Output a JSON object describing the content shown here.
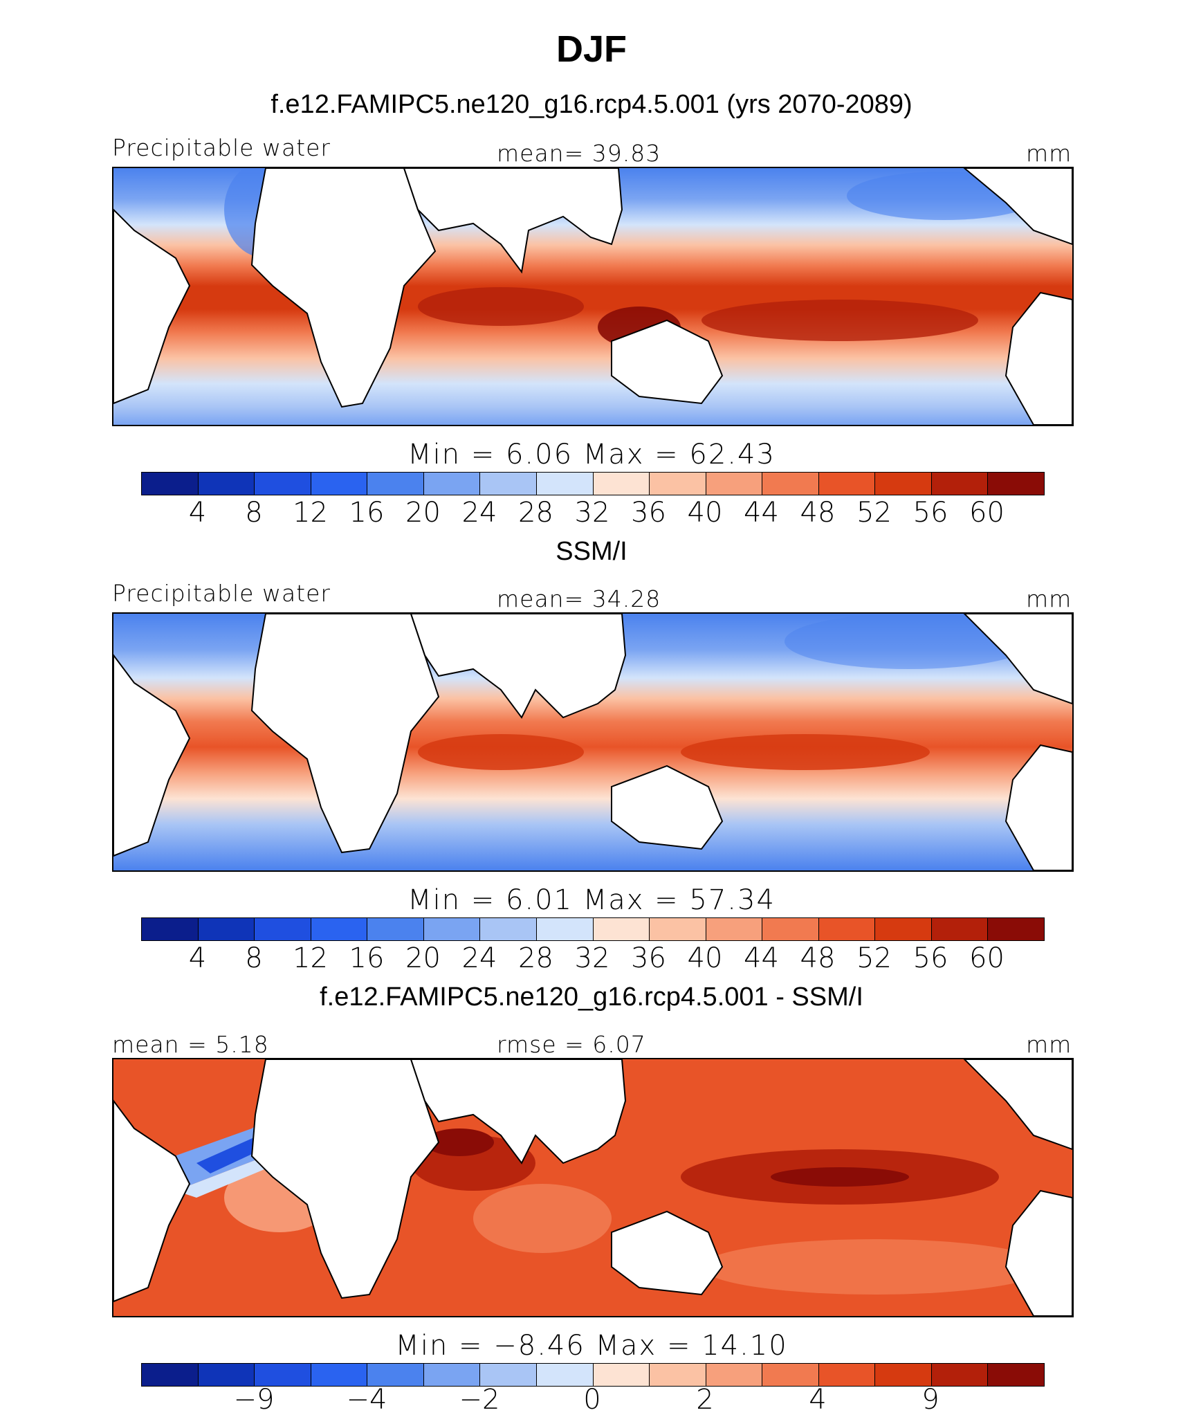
{
  "figure": {
    "title": "DJF",
    "colors": {
      "scale": [
        "#0b1e8c",
        "#0f34b8",
        "#1f4fe0",
        "#2a63f0",
        "#4b82ee",
        "#7aa4f2",
        "#a9c5f5",
        "#d3e4fb",
        "#fde3d3",
        "#fbc2a4",
        "#f7a07c",
        "#f17a50",
        "#e85428",
        "#d63a10",
        "#b3200a",
        "#8a0c06"
      ],
      "land": "#ffffff",
      "coast": "#000000"
    },
    "panels": [
      {
        "heading": "f.e12.FAMIPC5.ne120_g16.rcp4.5.001 (yrs 2070-2089)",
        "left_label": "Precipitable water",
        "center_label": "mean=  39.83",
        "right_label": "mm",
        "min_max": "Min =    6.06  Max =   62.43",
        "ticks": [
          "4",
          "8",
          "12",
          "16",
          "20",
          "24",
          "28",
          "32",
          "36",
          "40",
          "44",
          "48",
          "52",
          "56",
          "60"
        ]
      },
      {
        "heading": "SSM/I",
        "left_label": "Precipitable water",
        "center_label": "mean=  34.28",
        "right_label": "mm",
        "min_max": "Min =    6.01  Max =   57.34",
        "ticks": [
          "4",
          "8",
          "12",
          "16",
          "20",
          "24",
          "28",
          "32",
          "36",
          "40",
          "44",
          "48",
          "52",
          "56",
          "60"
        ]
      },
      {
        "heading": "f.e12.FAMIPC5.ne120_g16.rcp4.5.001 - SSM/I",
        "left_label": "mean =   5.18",
        "center_label": "rmse =   6.07",
        "right_label": "mm",
        "min_max": "Min =  −8.46  Max =  14.10",
        "ticks": [
          "−9",
          "−4",
          "−2",
          "0",
          "2",
          "4",
          "9"
        ]
      }
    ]
  }
}
